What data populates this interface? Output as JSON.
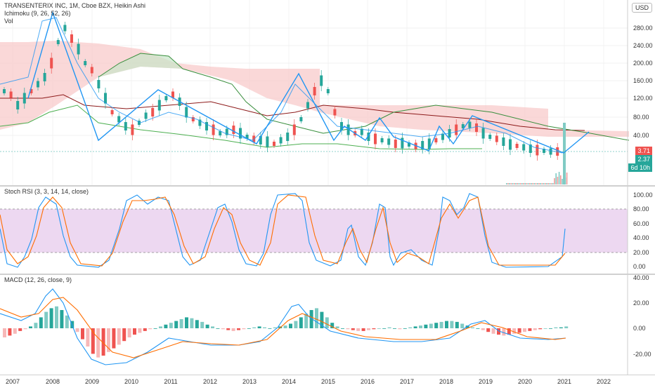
{
  "legend": {
    "main": "TRANSENTERIX INC, 1M, Cboe BZX, Heikin Ashi",
    "ichimoku": "Ichimoku (9, 26, 52, 26)",
    "vol": "Vol",
    "stoch": "Stoch RSI (3, 3, 14, 14, close)",
    "macd": "MACD (12, 26, close, 9)"
  },
  "currency": "USD",
  "price_axis": [
    "280.00",
    "240.00",
    "200.00",
    "160.00",
    "120.00",
    "80.00",
    "40.00"
  ],
  "badges": [
    {
      "label": "3.71",
      "color": "#ef5350"
    },
    {
      "label": "2.37",
      "color": "#26a69a"
    },
    {
      "label": "6d 10h",
      "color": "#26a69a"
    }
  ],
  "stoch_axis": [
    "100.00",
    "80.00",
    "60.00",
    "40.00",
    "20.00",
    "0.00"
  ],
  "macd_axis": [
    "40.00",
    "20.00",
    "0.00",
    "-20.00"
  ],
  "time_axis": [
    "2007",
    "2008",
    "2009",
    "2010",
    "2011",
    "2012",
    "2013",
    "2014",
    "2015",
    "2016",
    "2017",
    "2018",
    "2019",
    "2020",
    "2021",
    "2022"
  ],
  "colors": {
    "up": "#26a69a",
    "down": "#ef5350",
    "blue": "#2196f3",
    "orange": "#ff6d00",
    "band": "#e1bee7"
  }
}
